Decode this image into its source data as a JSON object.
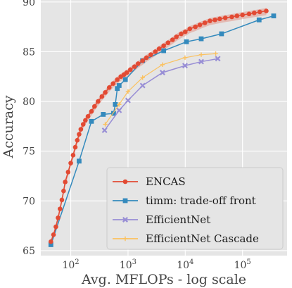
{
  "chart_data": {
    "type": "line",
    "xlabel": "Avg. MFLOPs - log scale",
    "ylabel": "Accuracy",
    "xscale": "log",
    "xlim": [
      30,
      600000
    ],
    "ylim": [
      64.5,
      90.2
    ],
    "x_ticks": [
      {
        "value": 100,
        "base": "10",
        "exp": "2"
      },
      {
        "value": 1000,
        "base": "10",
        "exp": "3"
      },
      {
        "value": 10000,
        "base": "10",
        "exp": "4"
      },
      {
        "value": 100000,
        "base": "10",
        "exp": "5"
      }
    ],
    "y_ticks": [
      {
        "value": 65,
        "label": "65"
      },
      {
        "value": 70,
        "label": "70"
      },
      {
        "value": 75,
        "label": "75"
      },
      {
        "value": 80,
        "label": "80"
      },
      {
        "value": 85,
        "label": "85"
      },
      {
        "value": 90,
        "label": "90"
      }
    ],
    "grid": true,
    "background": "#e5e5e5",
    "legend_position": "lower-right",
    "series": [
      {
        "name": "ENCAS",
        "color": "#e24a33",
        "marker": "circle",
        "band": true,
        "x": [
          45,
          50,
          55,
          60,
          65,
          70,
          75,
          80,
          90,
          100,
          110,
          120,
          130,
          140,
          150,
          165,
          180,
          200,
          230,
          260,
          300,
          350,
          400,
          470,
          550,
          650,
          750,
          850,
          950,
          1100,
          1300,
          1500,
          1800,
          2100,
          2500,
          3000,
          3500,
          4200,
          5000,
          6000,
          7000,
          8500,
          10000,
          12000,
          15000,
          18000,
          22000,
          27000,
          33000,
          40000,
          50000,
          65000,
          80000,
          100000,
          130000,
          160000,
          200000,
          260000
        ],
        "y": [
          65.9,
          66.6,
          67.4,
          68.3,
          69.2,
          70.1,
          71.0,
          71.9,
          72.9,
          73.8,
          74.6,
          75.4,
          76.1,
          76.7,
          77.2,
          77.7,
          78.1,
          78.5,
          79.0,
          79.5,
          80.0,
          80.5,
          80.9,
          81.4,
          81.8,
          82.2,
          82.5,
          82.7,
          82.9,
          83.2,
          83.5,
          83.8,
          84.1,
          84.4,
          84.7,
          85.0,
          85.3,
          85.6,
          85.9,
          86.2,
          86.5,
          86.8,
          87.0,
          87.3,
          87.5,
          87.7,
          87.9,
          88.1,
          88.2,
          88.3,
          88.4,
          88.5,
          88.6,
          88.7,
          88.8,
          88.9,
          89.0,
          89.1
        ]
      },
      {
        "name": "timm: trade-off front",
        "color": "#348abd",
        "marker": "square",
        "x": [
          45,
          140,
          230,
          370,
          560,
          600,
          650,
          700,
          900,
          1800,
          4200,
          10500,
          19000,
          43000,
          195000,
          350000
        ],
        "y": [
          65.6,
          74.0,
          78.0,
          78.7,
          78.8,
          79.7,
          81.3,
          81.6,
          82.2,
          84.1,
          85.1,
          86.0,
          86.3,
          86.8,
          88.2,
          88.6
        ],
        "labels": []
      },
      {
        "name": "EfficientNet",
        "color": "#988ed5",
        "marker": "x",
        "x": [
          390,
          700,
          1000,
          1800,
          4000,
          9900,
          19000,
          37000
        ],
        "y": [
          77.1,
          79.1,
          80.1,
          81.6,
          82.9,
          83.6,
          84.0,
          84.3
        ]
      },
      {
        "name": "EfficientNet Cascade",
        "color": "#fbc15e",
        "marker": "plus",
        "x": [
          400,
          700,
          1000,
          1800,
          4000,
          9900,
          19000,
          34000
        ],
        "y": [
          77.7,
          79.7,
          81.0,
          82.4,
          83.7,
          84.4,
          84.7,
          84.8
        ]
      }
    ]
  }
}
